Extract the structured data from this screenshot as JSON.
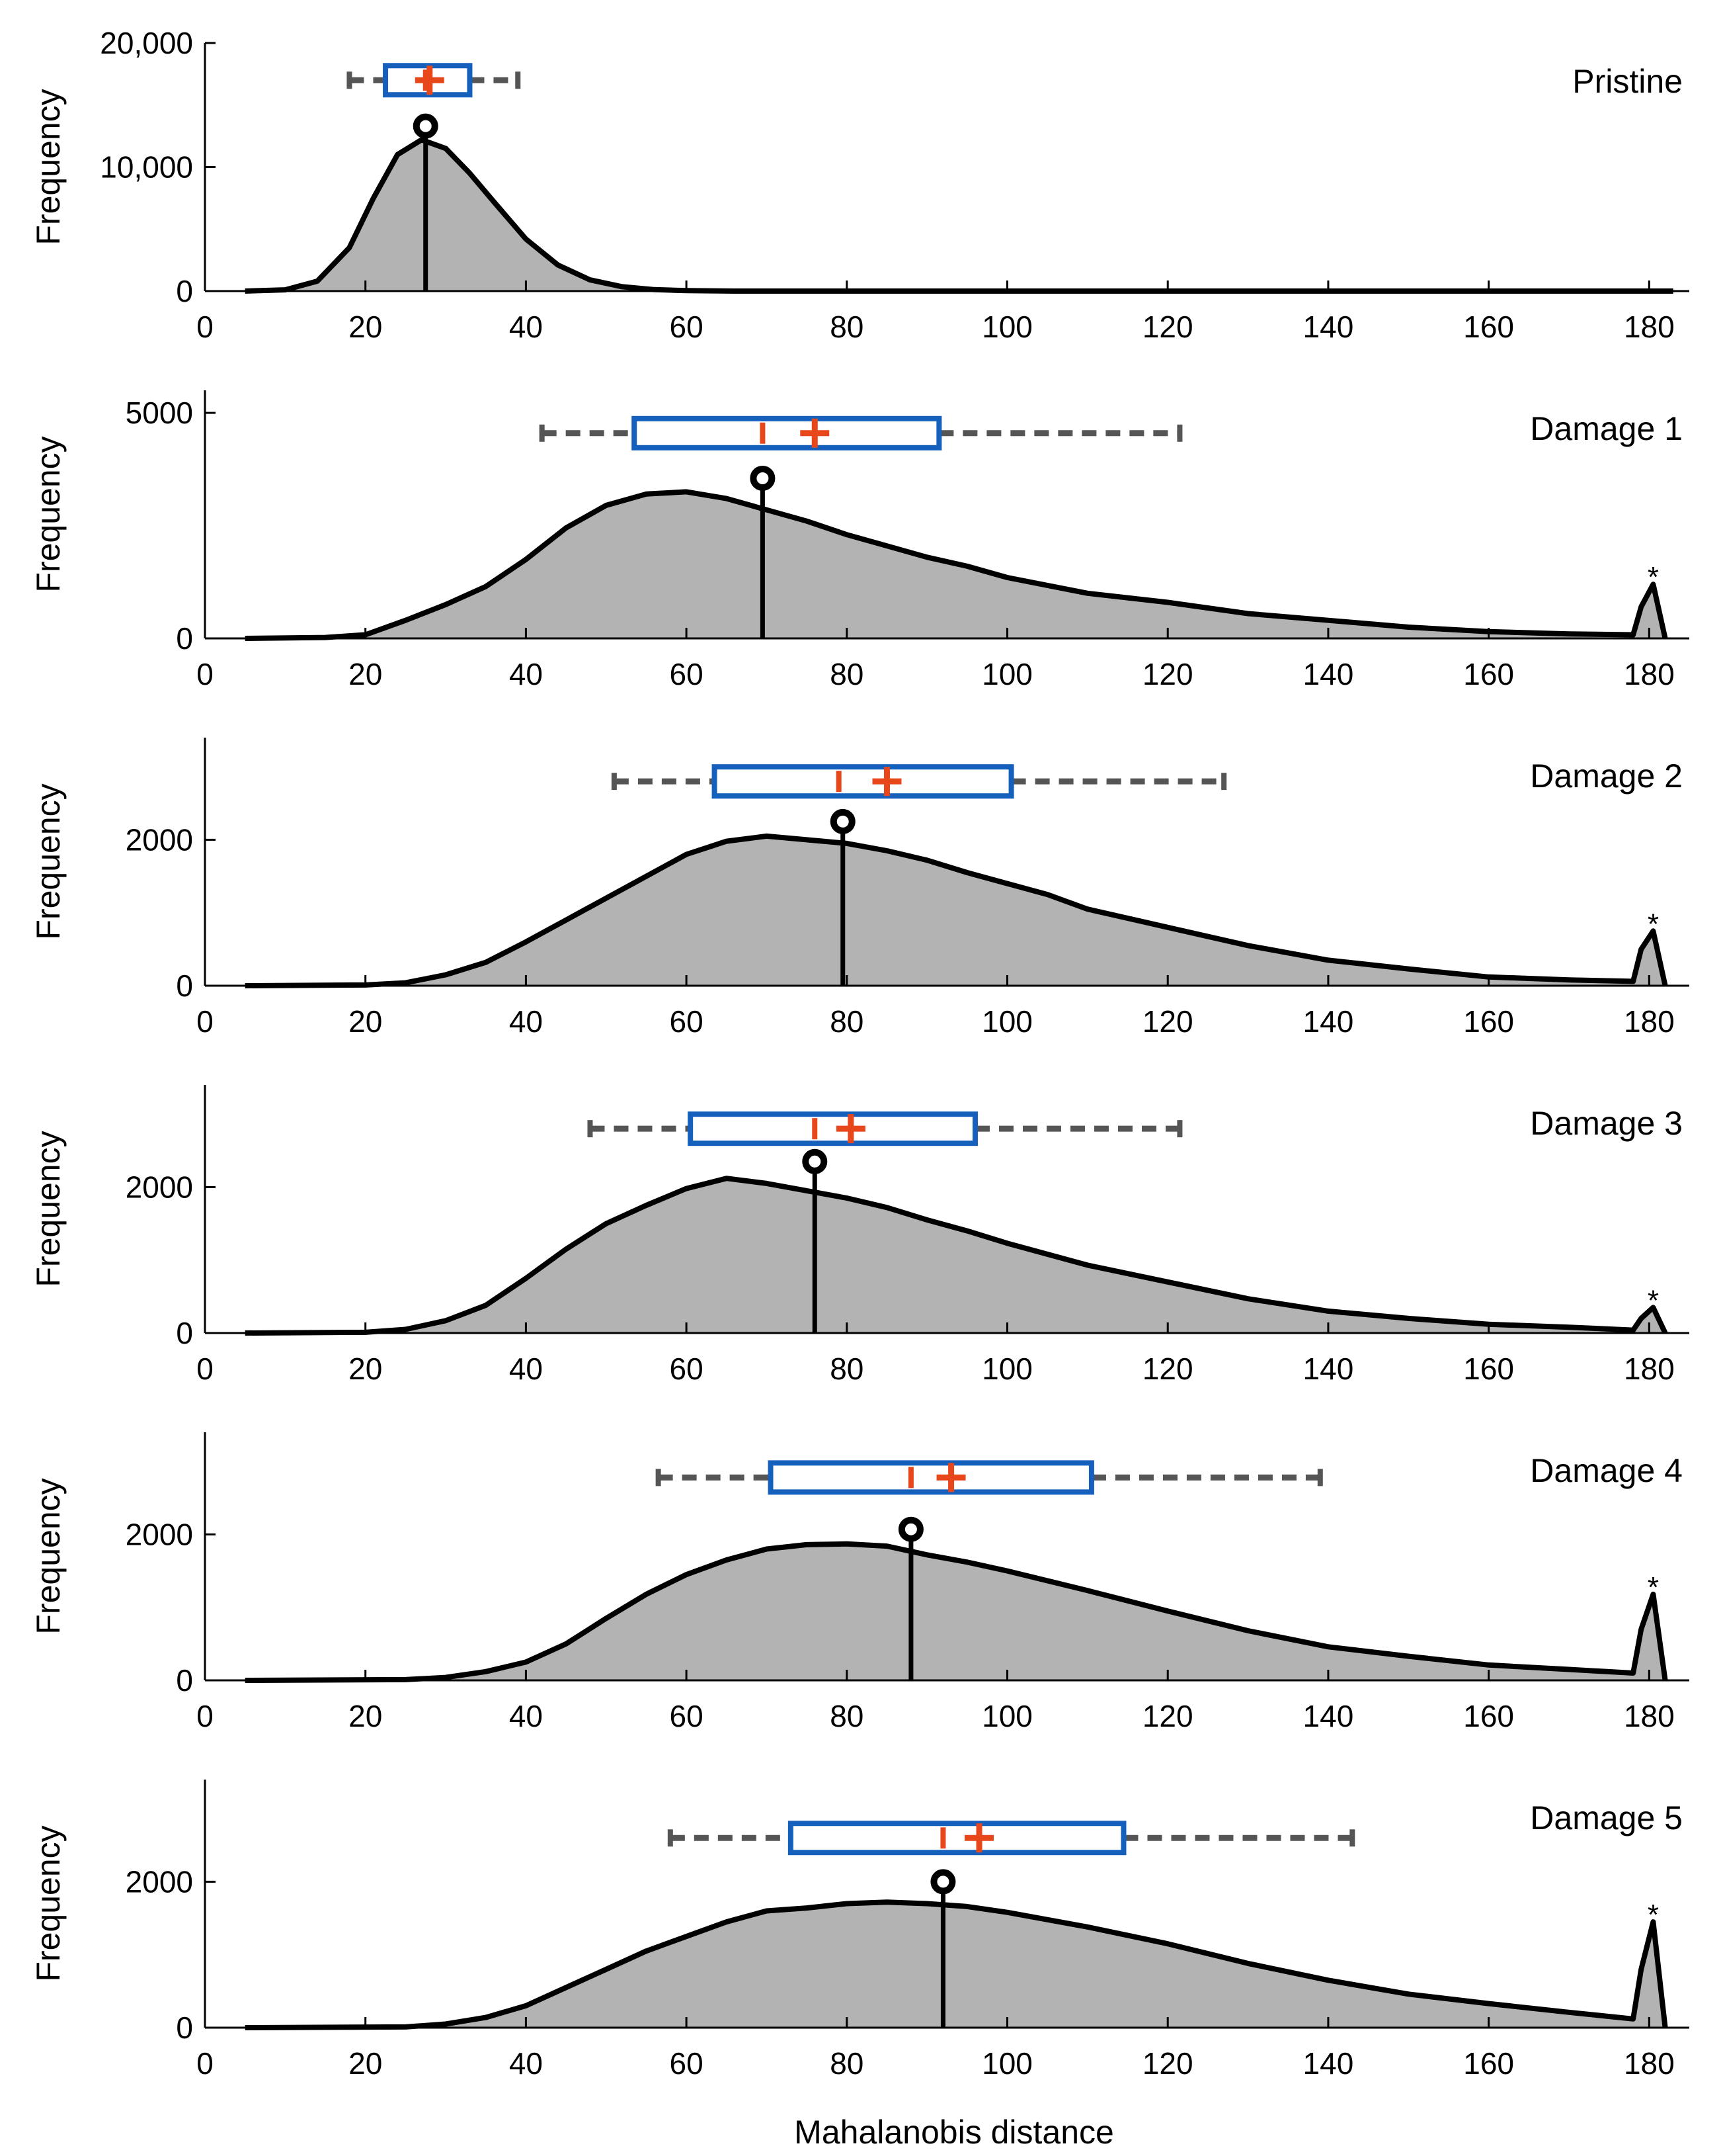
{
  "figure": {
    "xlabel": "Mahalanobis distance",
    "ylabel": "Frequency"
  },
  "colors": {
    "fill": "#b3b3b3",
    "curve": "#000000",
    "box": "#1560bd",
    "median": "#e8471c",
    "mean": "#e8471c",
    "whisker": "#555555"
  },
  "chart_data": [
    {
      "type": "area",
      "title": "Pristine",
      "xlabel": "",
      "ylabel": "Frequency",
      "xlim": [
        0,
        185
      ],
      "ylim": [
        0,
        20000
      ],
      "xticks": [
        0,
        20,
        40,
        60,
        80,
        100,
        120,
        140,
        160,
        180
      ],
      "yticks": [
        0,
        10000,
        20000
      ],
      "ytick_labels": [
        "0",
        "10,000",
        "20,000"
      ],
      "x": [
        5,
        10,
        14,
        18,
        21,
        24,
        27,
        30,
        33,
        36,
        40,
        44,
        48,
        52,
        56,
        60,
        66,
        75,
        90,
        120,
        150,
        183
      ],
      "y": [
        0,
        100,
        800,
        3500,
        7500,
        11000,
        12200,
        11500,
        9500,
        7200,
        4200,
        2100,
        900,
        350,
        120,
        40,
        0,
        0,
        0,
        0,
        0,
        0
      ],
      "mode": {
        "x": 27.5,
        "y": 13300
      },
      "boxplot": {
        "whisker_low": 18,
        "q1": 22.5,
        "median": 27.5,
        "mean": 28,
        "q3": 33,
        "whisker_high": 39,
        "y": 17000
      },
      "outlier_peak": null
    },
    {
      "type": "area",
      "title": "Damage 1",
      "xlabel": "",
      "ylabel": "Frequency",
      "xlim": [
        0,
        185
      ],
      "ylim": [
        0,
        5500
      ],
      "xticks": [
        0,
        20,
        40,
        60,
        80,
        100,
        120,
        140,
        160,
        180
      ],
      "yticks": [
        0,
        5000
      ],
      "ytick_labels": [
        "0",
        "5000"
      ],
      "x": [
        5,
        15,
        20,
        25,
        30,
        35,
        40,
        45,
        50,
        55,
        60,
        65,
        70,
        75,
        80,
        85,
        90,
        95,
        100,
        110,
        120,
        130,
        140,
        150,
        160,
        170,
        178,
        179,
        180.5,
        182
      ],
      "y": [
        0,
        20,
        80,
        400,
        750,
        1150,
        1750,
        2450,
        2950,
        3200,
        3250,
        3100,
        2850,
        2600,
        2300,
        2050,
        1800,
        1600,
        1350,
        1000,
        800,
        550,
        400,
        250,
        150,
        100,
        80,
        700,
        1200,
        0
      ],
      "mode": {
        "x": 69.5,
        "y": 3550
      },
      "boxplot": {
        "whisker_low": 42,
        "q1": 53.5,
        "median": 69.5,
        "mean": 76,
        "q3": 91.5,
        "whisker_high": 121.5,
        "y": 4550
      },
      "outlier_peak": {
        "x": 180.5,
        "y": 1200,
        "marker": "*"
      }
    },
    {
      "type": "area",
      "title": "Damage 2",
      "xlabel": "",
      "ylabel": "Frequency",
      "xlim": [
        0,
        185
      ],
      "ylim": [
        0,
        3400
      ],
      "xticks": [
        0,
        20,
        40,
        60,
        80,
        100,
        120,
        140,
        160,
        180
      ],
      "yticks": [
        0,
        2000
      ],
      "ytick_labels": [
        "0",
        "2000"
      ],
      "x": [
        5,
        20,
        25,
        30,
        35,
        40,
        45,
        50,
        55,
        60,
        65,
        70,
        75,
        80,
        85,
        90,
        95,
        100,
        105,
        110,
        120,
        130,
        140,
        150,
        160,
        170,
        178,
        179,
        180.5,
        182
      ],
      "y": [
        0,
        10,
        40,
        150,
        320,
        600,
        900,
        1200,
        1500,
        1800,
        1980,
        2050,
        2000,
        1950,
        1850,
        1720,
        1550,
        1400,
        1250,
        1050,
        800,
        550,
        350,
        230,
        120,
        80,
        60,
        500,
        750,
        0
      ],
      "mode": {
        "x": 79.5,
        "y": 2250
      },
      "boxplot": {
        "whisker_low": 51,
        "q1": 63.5,
        "median": 79,
        "mean": 85,
        "q3": 100.5,
        "whisker_high": 127,
        "y": 2800
      },
      "outlier_peak": {
        "x": 180.5,
        "y": 750,
        "marker": "*"
      }
    },
    {
      "type": "area",
      "title": "Damage 3",
      "xlabel": "",
      "ylabel": "Frequency",
      "xlim": [
        0,
        185
      ],
      "ylim": [
        0,
        3400
      ],
      "xticks": [
        0,
        20,
        40,
        60,
        80,
        100,
        120,
        140,
        160,
        180
      ],
      "yticks": [
        0,
        2000
      ],
      "ytick_labels": [
        "0",
        "2000"
      ],
      "x": [
        5,
        20,
        25,
        30,
        35,
        40,
        45,
        50,
        55,
        60,
        65,
        70,
        75,
        80,
        85,
        90,
        95,
        100,
        105,
        110,
        120,
        130,
        140,
        150,
        160,
        170,
        178,
        179,
        180.5,
        182
      ],
      "y": [
        0,
        10,
        50,
        170,
        380,
        750,
        1150,
        1500,
        1750,
        1980,
        2120,
        2050,
        1950,
        1850,
        1720,
        1550,
        1400,
        1230,
        1080,
        930,
        700,
        470,
        300,
        200,
        120,
        80,
        40,
        200,
        350,
        0
      ],
      "mode": {
        "x": 76,
        "y": 2350
      },
      "boxplot": {
        "whisker_low": 48,
        "q1": 60.5,
        "median": 76,
        "mean": 80.5,
        "q3": 96,
        "whisker_high": 121.5,
        "y": 2800
      },
      "outlier_peak": {
        "x": 180.5,
        "y": 350,
        "marker": "*"
      }
    },
    {
      "type": "area",
      "title": "Damage 4",
      "xlabel": "",
      "ylabel": "Frequency",
      "xlim": [
        0,
        185
      ],
      "ylim": [
        0,
        3400
      ],
      "xticks": [
        0,
        20,
        40,
        60,
        80,
        100,
        120,
        140,
        160,
        180
      ],
      "yticks": [
        0,
        2000
      ],
      "ytick_labels": [
        "0",
        "2000"
      ],
      "x": [
        5,
        25,
        30,
        35,
        40,
        45,
        50,
        55,
        60,
        65,
        70,
        75,
        80,
        85,
        90,
        95,
        100,
        110,
        120,
        130,
        140,
        150,
        160,
        170,
        178,
        179,
        180.5,
        182
      ],
      "y": [
        0,
        10,
        40,
        120,
        250,
        500,
        850,
        1180,
        1450,
        1650,
        1800,
        1860,
        1870,
        1840,
        1720,
        1620,
        1500,
        1230,
        950,
        680,
        460,
        330,
        210,
        150,
        100,
        700,
        1180,
        0
      ],
      "mode": {
        "x": 88,
        "y": 2070
      },
      "boxplot": {
        "whisker_low": 56.5,
        "q1": 70.5,
        "median": 88,
        "mean": 93,
        "q3": 110.5,
        "whisker_high": 139,
        "y": 2780
      },
      "outlier_peak": {
        "x": 180.5,
        "y": 1180,
        "marker": "*"
      }
    },
    {
      "type": "area",
      "title": "Damage 5",
      "xlabel": "Mahalanobis distance",
      "ylabel": "Frequency",
      "xlim": [
        0,
        185
      ],
      "ylim": [
        0,
        3400
      ],
      "xticks": [
        0,
        20,
        40,
        60,
        80,
        100,
        120,
        140,
        160,
        180
      ],
      "yticks": [
        0,
        2000
      ],
      "ytick_labels": [
        "0",
        "2000"
      ],
      "x": [
        5,
        25,
        30,
        35,
        40,
        45,
        50,
        55,
        60,
        65,
        70,
        75,
        80,
        85,
        90,
        95,
        100,
        110,
        120,
        130,
        140,
        150,
        160,
        170,
        178,
        179,
        180.5,
        182
      ],
      "y": [
        0,
        10,
        50,
        140,
        300,
        550,
        800,
        1050,
        1250,
        1450,
        1600,
        1640,
        1700,
        1720,
        1700,
        1660,
        1580,
        1380,
        1150,
        880,
        650,
        460,
        330,
        210,
        120,
        800,
        1450,
        0
      ],
      "mode": {
        "x": 92,
        "y": 2000
      },
      "boxplot": {
        "whisker_low": 58,
        "q1": 73,
        "median": 92,
        "mean": 96.5,
        "q3": 114.5,
        "whisker_high": 143,
        "y": 2600
      },
      "outlier_peak": {
        "x": 180.5,
        "y": 1450,
        "marker": "*"
      }
    }
  ]
}
